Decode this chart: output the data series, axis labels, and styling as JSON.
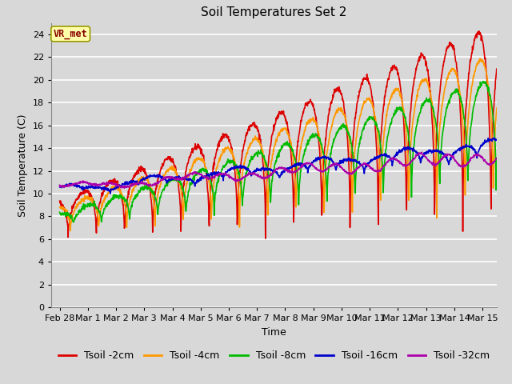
{
  "title": "Soil Temperatures Set 2",
  "xlabel": "Time",
  "ylabel": "Soil Temperature (C)",
  "annotation": "VR_met",
  "ylim": [
    0,
    25
  ],
  "yticks": [
    0,
    2,
    4,
    6,
    8,
    10,
    12,
    14,
    16,
    18,
    20,
    22,
    24
  ],
  "series_colors": {
    "Tsoil -2cm": "#dd0000",
    "Tsoil -4cm": "#ff9900",
    "Tsoil -8cm": "#00bb00",
    "Tsoil -16cm": "#0000cc",
    "Tsoil -32cm": "#aa00aa"
  },
  "bg_color": "#d8d8d8",
  "plot_bg_color": "#d8d8d8",
  "grid_color": "#ffffff",
  "title_fontsize": 11,
  "label_fontsize": 9,
  "tick_fontsize": 8,
  "legend_fontsize": 9
}
